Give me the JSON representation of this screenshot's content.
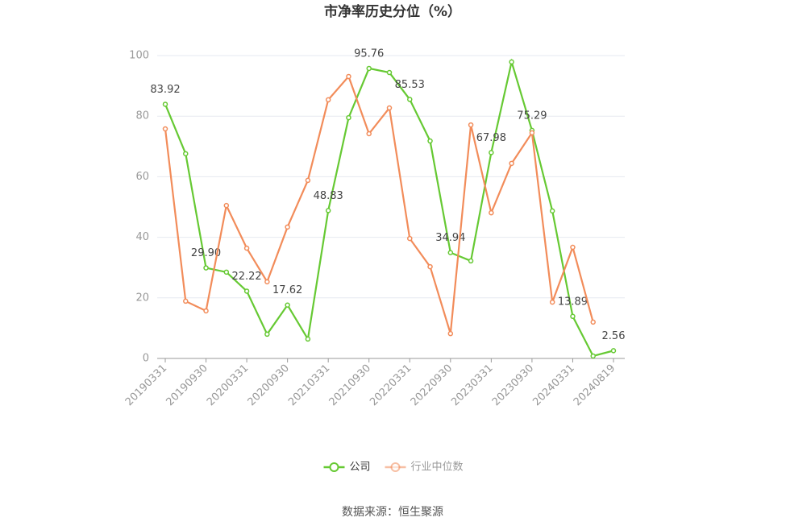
{
  "chart_data": {
    "type": "line",
    "title": "市净率历史分位（%）",
    "source": "数据来源：恒生聚源",
    "categories": [
      "20190331",
      null,
      "20190930",
      null,
      "20200331",
      null,
      "20200930",
      null,
      "20210331",
      null,
      "20210930",
      null,
      "20220331",
      null,
      "20220930",
      null,
      "20230331",
      null,
      "20230930",
      null,
      "20240331",
      null,
      "20240819"
    ],
    "series": [
      {
        "name": "公司",
        "color": "#66c933",
        "values": [
          83.92,
          67.6,
          29.9,
          28.5,
          22.22,
          8.0,
          17.62,
          6.4,
          48.83,
          79.5,
          95.76,
          94.4,
          85.53,
          71.8,
          34.94,
          32.2,
          67.98,
          97.9,
          75.29,
          48.7,
          13.89,
          0.8,
          2.56
        ],
        "value_labels": [
          "83.92",
          null,
          "29.90",
          null,
          "22.22",
          null,
          "17.62",
          null,
          "48.83",
          null,
          "95.76",
          null,
          "85.53",
          null,
          "34.94",
          null,
          "67.98",
          null,
          "75.29",
          null,
          "13.89",
          null,
          "2.56"
        ]
      },
      {
        "name": "行业中位数",
        "color": "#f28c5a",
        "values": [
          75.8,
          18.9,
          15.7,
          50.5,
          36.4,
          25.3,
          43.4,
          58.8,
          85.4,
          93.1,
          74.2,
          82.7,
          39.6,
          30.3,
          8.2,
          77.1,
          48.1,
          64.4,
          74.5,
          18.6,
          36.7,
          12.0,
          null
        ]
      }
    ],
    "ylim": [
      0,
      100
    ],
    "yticks": [
      0,
      20,
      40,
      60,
      80,
      100
    ],
    "grid": true
  }
}
